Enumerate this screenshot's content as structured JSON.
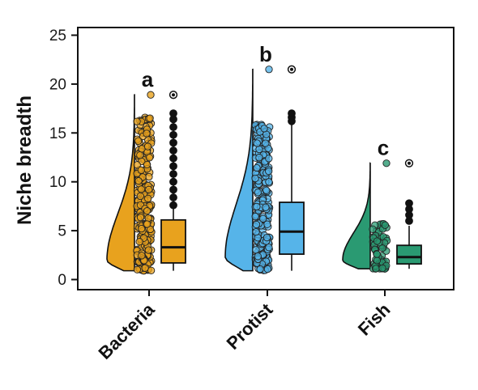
{
  "chart_data": {
    "type": "raincloud",
    "title": "",
    "xlabel": "",
    "ylabel": "Niche breadth",
    "ylim": [
      0,
      25
    ],
    "yticks": [
      0,
      5,
      10,
      15,
      20,
      25
    ],
    "grid": false,
    "legend": "none",
    "categories": [
      "Bacteria",
      "Protist",
      "Fish"
    ],
    "colors": {
      "Bacteria": "#E8A21E",
      "Protist": "#56B4E9",
      "Fish": "#2A9A72"
    },
    "significance_letters": [
      "a",
      "b",
      "c"
    ],
    "series": [
      {
        "category": "Bacteria",
        "min": 0.9,
        "q1": 1.7,
        "median": 3.3,
        "q3": 6.1,
        "max_whisker": 17.1,
        "outliers": [
          7.6,
          8.4,
          9.2,
          10.0,
          10.8,
          11.6,
          12.4,
          13.2,
          14.0,
          14.8,
          15.6,
          16.4,
          17.0,
          18.9
        ],
        "density_peak": 2.0,
        "density_max": 18.9
      },
      {
        "category": "Protist",
        "min": 0.9,
        "q1": 2.6,
        "median": 4.9,
        "q3": 7.9,
        "max_whisker": 16.0,
        "outliers": [
          16.2,
          16.6,
          17.0,
          21.5
        ],
        "density_peak": 2.3,
        "density_max": 21.5
      },
      {
        "category": "Fish",
        "min": 1.1,
        "q1": 1.6,
        "median": 2.3,
        "q3": 3.5,
        "max_whisker": 5.5,
        "outliers": [
          6.0,
          6.6,
          7.2,
          7.8,
          11.9
        ],
        "density_peak": 2.0,
        "density_max": 11.9
      }
    ]
  }
}
